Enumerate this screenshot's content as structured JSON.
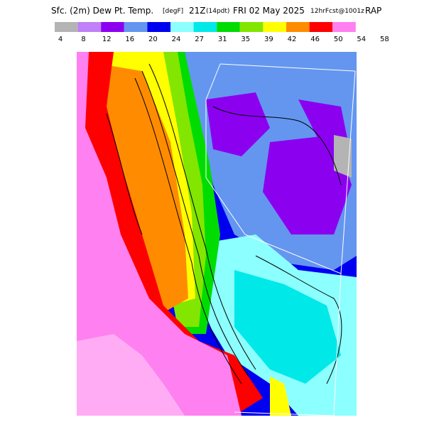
{
  "header": {
    "parts": [
      "Sfc. (2m) Dew Pt. Temp.",
      "[degF]",
      "21Z",
      "(14pdt)",
      "FRI 02 May 2025",
      "12hrFcst@1001z",
      "RAP"
    ]
  },
  "legend": {
    "colors": [
      "#b4b4b4",
      "#c080f8",
      "#8c00f0",
      "#6496f0",
      "#0000f0",
      "#8cffff",
      "#00e8e8",
      "#00dc00",
      "#82e600",
      "#ffff00",
      "#ff8c00",
      "#ff0000",
      "#ff80f0"
    ],
    "labels": [
      4,
      8,
      12,
      16,
      20,
      24,
      27,
      31,
      35,
      39,
      42,
      46,
      50,
      54,
      58
    ]
  }
}
